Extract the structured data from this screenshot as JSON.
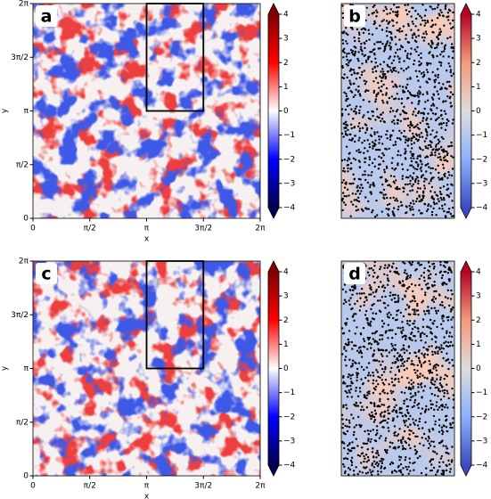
{
  "chart_data": [
    {
      "type": "heatmap",
      "panel_label": "a",
      "xlabel": "x",
      "ylabel": "y",
      "colormap": "seismic",
      "xlim": [
        0,
        6.2832
      ],
      "ylim": [
        0,
        6.2832
      ],
      "xticks": [
        0,
        {
          "value": 1.5708,
          "label": "π/2"
        },
        {
          "value": 3.1416,
          "label": "π"
        },
        {
          "value": 4.7124,
          "label": "3π/2"
        },
        {
          "value": 6.2832,
          "label": "2π"
        }
      ],
      "yticks": [
        0,
        {
          "value": 1.5708,
          "label": "π/2"
        },
        {
          "value": 3.1416,
          "label": "π"
        },
        {
          "value": 4.7124,
          "label": "3π/2"
        },
        {
          "value": 6.2832,
          "label": "2π"
        }
      ],
      "clim": [
        -4,
        4
      ],
      "cticks": [
        {
          "value": -4,
          "label": "−4"
        },
        {
          "value": -3,
          "label": "−3"
        },
        {
          "value": -2,
          "label": "−2"
        },
        {
          "value": -1,
          "label": "−1"
        },
        0,
        1,
        2,
        3,
        4
      ]
    },
    {
      "type": "particles",
      "panel_label": "b",
      "colormap": "coolwarm",
      "clim": [
        -4,
        4
      ],
      "cticks": [
        {
          "value": -4,
          "label": "−4"
        },
        {
          "value": -3,
          "label": "−3"
        },
        {
          "value": -2,
          "label": "−2"
        },
        {
          "value": -1,
          "label": "−1"
        },
        0,
        1,
        2,
        3,
        4
      ]
    },
    {
      "type": "heatmap",
      "panel_label": "c",
      "xlabel": "x",
      "ylabel": "y",
      "colormap": "seismic",
      "xlim": [
        0,
        6.2832
      ],
      "ylim": [
        0,
        6.2832
      ],
      "xticks": [
        0,
        {
          "value": 1.5708,
          "label": "π/2"
        },
        {
          "value": 3.1416,
          "label": "π"
        },
        {
          "value": 4.7124,
          "label": "3π/2"
        },
        {
          "value": 6.2832,
          "label": "2π"
        }
      ],
      "yticks": [
        0,
        {
          "value": 1.5708,
          "label": "π/2"
        },
        {
          "value": 3.1416,
          "label": "π"
        },
        {
          "value": 4.7124,
          "label": "3π/2"
        },
        {
          "value": 6.2832,
          "label": "2π"
        }
      ],
      "clim": [
        -4,
        4
      ],
      "cticks": [
        {
          "value": -4,
          "label": "−4"
        },
        {
          "value": -3,
          "label": "−3"
        },
        {
          "value": -2,
          "label": "−2"
        },
        {
          "value": -1,
          "label": "−1"
        },
        0,
        1,
        2,
        3,
        4
      ]
    },
    {
      "type": "particles",
      "panel_label": "d",
      "colormap": "coolwarm",
      "clim": [
        -4,
        4
      ],
      "cticks": [
        {
          "value": -4,
          "label": "−4"
        },
        {
          "value": -3,
          "label": "−3"
        },
        {
          "value": -2,
          "label": "−2"
        },
        {
          "value": -1,
          "label": "−1"
        },
        0,
        1,
        2,
        3,
        4
      ]
    }
  ]
}
